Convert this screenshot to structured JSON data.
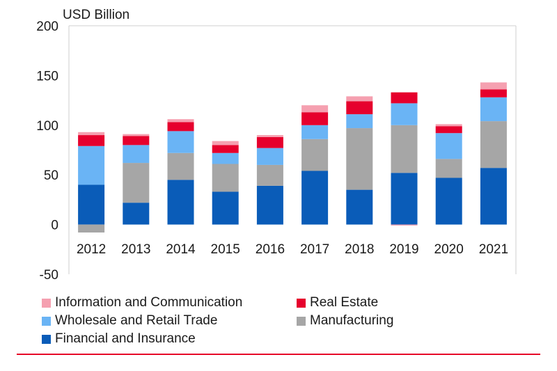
{
  "chart_data": {
    "type": "bar",
    "stacked": true,
    "unit_label": "USD Billion",
    "categories": [
      "2012",
      "2013",
      "2014",
      "2015",
      "2016",
      "2017",
      "2018",
      "2019",
      "2020",
      "2021"
    ],
    "ylim": [
      -50,
      200
    ],
    "yticks": [
      200,
      150,
      100,
      50,
      0,
      -50
    ],
    "series": [
      {
        "name": "Financial and Insurance",
        "color": "#0a5cb8",
        "values": [
          40,
          22,
          45,
          33,
          39,
          54,
          35,
          52,
          47,
          57
        ]
      },
      {
        "name": "Manufacturing",
        "color": "#a6a6a6",
        "values": [
          -8,
          40,
          27,
          28,
          21,
          32,
          62,
          48,
          19,
          47
        ]
      },
      {
        "name": "Wholesale and Retail Trade",
        "color": "#6ab4f5",
        "values": [
          39,
          18,
          22,
          11,
          17,
          14,
          14,
          22,
          26,
          24
        ]
      },
      {
        "name": "Real Estate",
        "color": "#e6002d",
        "values": [
          11,
          9,
          9,
          8,
          11,
          13,
          13,
          11,
          7,
          8
        ]
      },
      {
        "name": "Information and Communication",
        "color": "#f5a0b0",
        "values": [
          3,
          2,
          3,
          4,
          2,
          7,
          5,
          -1,
          2,
          7
        ]
      }
    ],
    "legend_order": [
      "Information and Communication",
      "Real Estate",
      "Wholesale and Retail Trade",
      "Manufacturing",
      "Financial and Insurance"
    ]
  }
}
